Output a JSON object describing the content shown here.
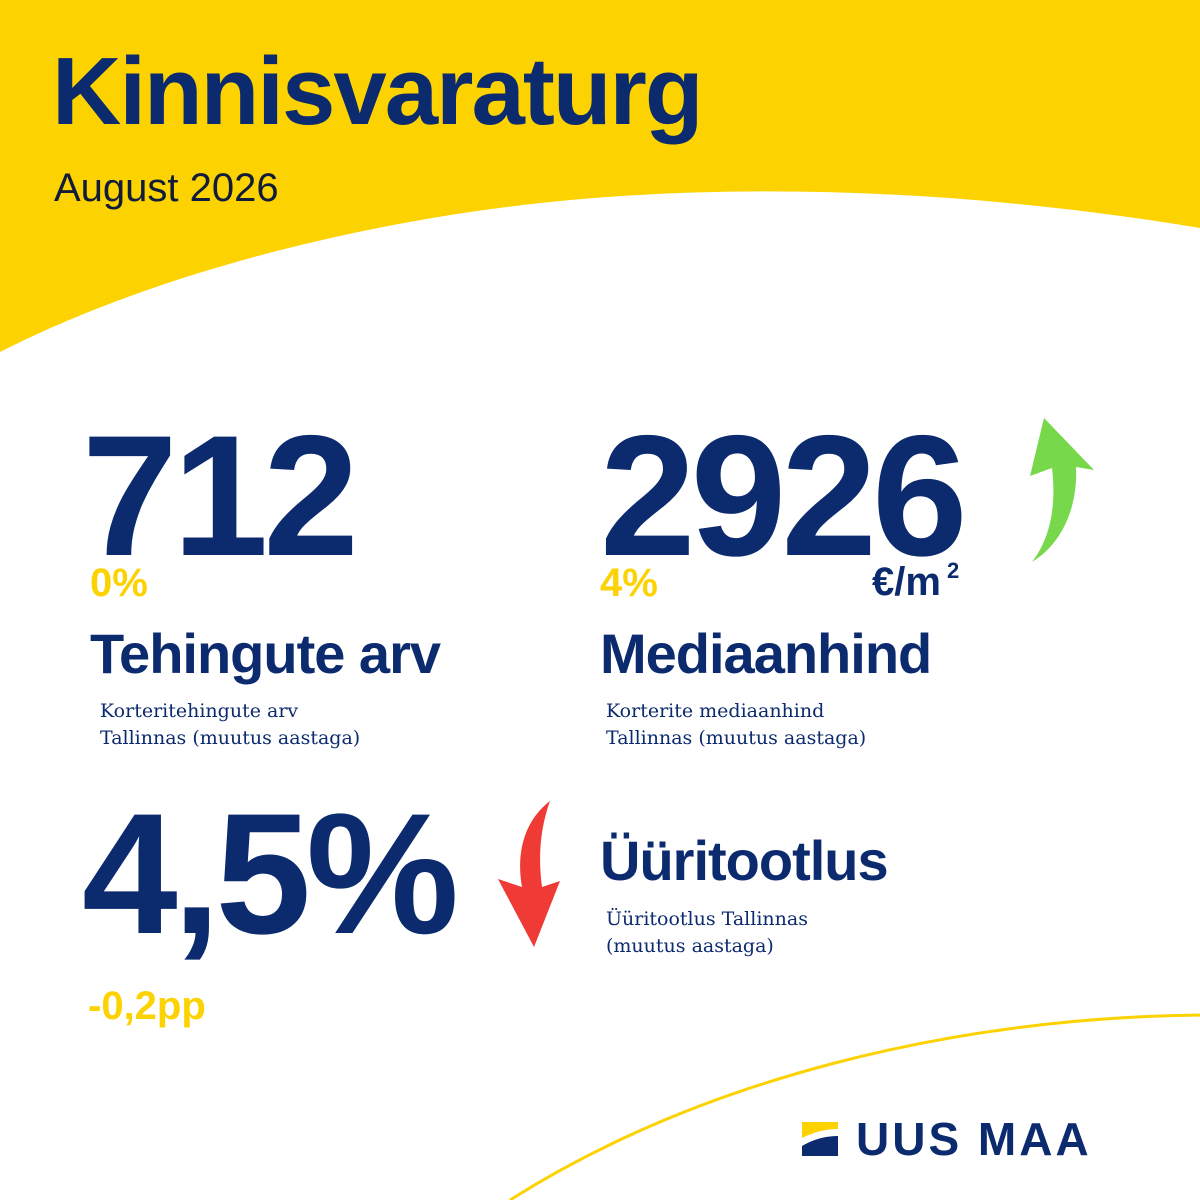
{
  "header": {
    "title": "Kinnisvaraturg",
    "subtitle": "August 2026"
  },
  "metrics": [
    {
      "value": "712",
      "change": "0%",
      "label": "Tehingute arv",
      "description": "Korteritehingute arv\nTallinnas (muutus aastaga)"
    },
    {
      "value": "2926",
      "unit": "€/m",
      "unit_sup": "2",
      "change": "4%",
      "label": "Mediaanhind",
      "description": "Korterite mediaanhind\nTallinnas (muutus aastaga)",
      "trend_icon": "arrow-up-icon"
    },
    {
      "value": "4,5%",
      "change": "-0,2pp",
      "label": "Üüritootlus",
      "description": "Üüritootlus Tallinnas\n(muutus aastaga)",
      "trend_icon": "arrow-down-icon"
    }
  ],
  "logo": {
    "text": "UUS MAA"
  },
  "colors": {
    "brand_yellow": "#fcd200",
    "navy": "#0c2a6e",
    "up_green": "#77d84c",
    "down_red": "#ef3a36"
  }
}
